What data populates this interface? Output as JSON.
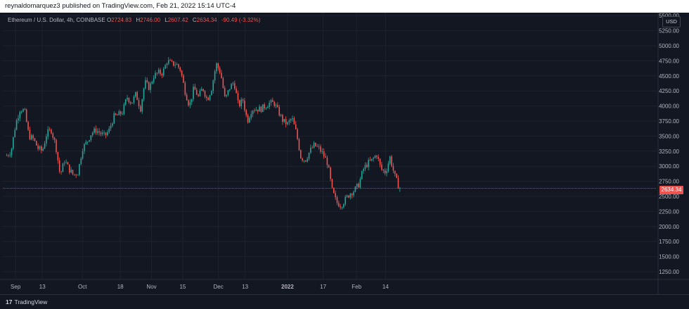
{
  "header": {
    "attribution": "reynaldomarquez3 published on TradingView.com, Feb 21, 2022 15:14 UTC-4"
  },
  "legend": {
    "symbol": "Ethereum / U.S. Dollar, 4h, COINBASE",
    "open_label": "O",
    "open": "2724.83",
    "high_label": "H",
    "high": "2746.00",
    "low_label": "L",
    "low": "2607.42",
    "close_label": "C",
    "close": "2634.34",
    "change": "-90.49 (-3.32%)"
  },
  "currency_button": "USD",
  "last_price_label": "2634.34",
  "footer": {
    "brand": "TradingView",
    "brand_mark": "17"
  },
  "colors": {
    "background": "#131722",
    "up": "#26a69a",
    "down": "#ef5350",
    "grid": "#1e222d",
    "axis_text": "#b2b5be"
  },
  "chart_data": {
    "type": "candlestick",
    "instrument": "Ethereum / U.S. Dollar",
    "interval": "4h",
    "exchange": "COINBASE",
    "ylim": [
      1000,
      5550
    ],
    "y_ticks": [
      "1250.00",
      "1500.00",
      "1750.00",
      "2000.00",
      "2250.00",
      "2500.00",
      "2750.00",
      "3000.00",
      "3250.00",
      "3500.00",
      "3750.00",
      "4000.00",
      "4250.00",
      "4500.00",
      "4750.00",
      "5000.00",
      "5250.00",
      "5500.00"
    ],
    "x_ticks": [
      "Sep",
      "13",
      "Oct",
      "18",
      "Nov",
      "15",
      "Dec",
      "13",
      "2022",
      "17",
      "Feb",
      "14"
    ],
    "last_price": 2634.34,
    "grid": true,
    "price_path": [
      {
        "date": "2021-08-28",
        "price": 3180
      },
      {
        "date": "2021-08-30",
        "price": 3250
      },
      {
        "date": "2021-09-01",
        "price": 3700
      },
      {
        "date": "2021-09-03",
        "price": 3950
      },
      {
        "date": "2021-09-05",
        "price": 3920
      },
      {
        "date": "2021-09-07",
        "price": 3500
      },
      {
        "date": "2021-09-09",
        "price": 3450
      },
      {
        "date": "2021-09-11",
        "price": 3300
      },
      {
        "date": "2021-09-13",
        "price": 3250
      },
      {
        "date": "2021-09-15",
        "price": 3550
      },
      {
        "date": "2021-09-17",
        "price": 3600
      },
      {
        "date": "2021-09-19",
        "price": 3350
      },
      {
        "date": "2021-09-21",
        "price": 2850
      },
      {
        "date": "2021-09-23",
        "price": 3100
      },
      {
        "date": "2021-09-25",
        "price": 2950
      },
      {
        "date": "2021-09-27",
        "price": 2850
      },
      {
        "date": "2021-09-29",
        "price": 2900
      },
      {
        "date": "2021-10-01",
        "price": 3300
      },
      {
        "date": "2021-10-03",
        "price": 3400
      },
      {
        "date": "2021-10-05",
        "price": 3550
      },
      {
        "date": "2021-10-07",
        "price": 3600
      },
      {
        "date": "2021-10-09",
        "price": 3550
      },
      {
        "date": "2021-10-11",
        "price": 3500
      },
      {
        "date": "2021-10-13",
        "price": 3600
      },
      {
        "date": "2021-10-15",
        "price": 3820
      },
      {
        "date": "2021-10-17",
        "price": 3850
      },
      {
        "date": "2021-10-19",
        "price": 3900
      },
      {
        "date": "2021-10-21",
        "price": 4150
      },
      {
        "date": "2021-10-23",
        "price": 4050
      },
      {
        "date": "2021-10-25",
        "price": 4200
      },
      {
        "date": "2021-10-27",
        "price": 3950
      },
      {
        "date": "2021-10-29",
        "price": 4400
      },
      {
        "date": "2021-10-31",
        "price": 4300
      },
      {
        "date": "2021-11-02",
        "price": 4500
      },
      {
        "date": "2021-11-04",
        "price": 4550
      },
      {
        "date": "2021-11-06",
        "price": 4550
      },
      {
        "date": "2021-11-08",
        "price": 4750
      },
      {
        "date": "2021-11-10",
        "price": 4700
      },
      {
        "date": "2021-11-12",
        "price": 4700
      },
      {
        "date": "2021-11-14",
        "price": 4600
      },
      {
        "date": "2021-11-16",
        "price": 4250
      },
      {
        "date": "2021-11-18",
        "price": 4000
      },
      {
        "date": "2021-11-20",
        "price": 4300
      },
      {
        "date": "2021-11-22",
        "price": 4150
      },
      {
        "date": "2021-11-24",
        "price": 4300
      },
      {
        "date": "2021-11-26",
        "price": 4100
      },
      {
        "date": "2021-11-28",
        "price": 4300
      },
      {
        "date": "2021-11-30",
        "price": 4700
      },
      {
        "date": "2021-12-02",
        "price": 4550
      },
      {
        "date": "2021-12-04",
        "price": 4100
      },
      {
        "date": "2021-12-06",
        "price": 4300
      },
      {
        "date": "2021-12-08",
        "price": 4400
      },
      {
        "date": "2021-12-10",
        "price": 4000
      },
      {
        "date": "2021-12-12",
        "price": 4100
      },
      {
        "date": "2021-12-14",
        "price": 3750
      },
      {
        "date": "2021-12-16",
        "price": 3950
      },
      {
        "date": "2021-12-18",
        "price": 3950
      },
      {
        "date": "2021-12-20",
        "price": 3950
      },
      {
        "date": "2021-12-22",
        "price": 4000
      },
      {
        "date": "2021-12-24",
        "price": 4050
      },
      {
        "date": "2021-12-26",
        "price": 4050
      },
      {
        "date": "2021-12-28",
        "price": 3900
      },
      {
        "date": "2021-12-30",
        "price": 3750
      },
      {
        "date": "2022-01-01",
        "price": 3700
      },
      {
        "date": "2022-01-03",
        "price": 3800
      },
      {
        "date": "2022-01-05",
        "price": 3550
      },
      {
        "date": "2022-01-07",
        "price": 3150
      },
      {
        "date": "2022-01-09",
        "price": 3100
      },
      {
        "date": "2022-01-11",
        "price": 3250
      },
      {
        "date": "2022-01-13",
        "price": 3350
      },
      {
        "date": "2022-01-15",
        "price": 3300
      },
      {
        "date": "2022-01-17",
        "price": 3200
      },
      {
        "date": "2022-01-19",
        "price": 3050
      },
      {
        "date": "2022-01-21",
        "price": 2600
      },
      {
        "date": "2022-01-23",
        "price": 2400
      },
      {
        "date": "2022-01-25",
        "price": 2350
      },
      {
        "date": "2022-01-27",
        "price": 2450
      },
      {
        "date": "2022-01-29",
        "price": 2550
      },
      {
        "date": "2022-01-31",
        "price": 2600
      },
      {
        "date": "2022-02-02",
        "price": 2700
      },
      {
        "date": "2022-02-04",
        "price": 2950
      },
      {
        "date": "2022-02-06",
        "price": 3050
      },
      {
        "date": "2022-02-08",
        "price": 3100
      },
      {
        "date": "2022-02-10",
        "price": 3200
      },
      {
        "date": "2022-02-12",
        "price": 2950
      },
      {
        "date": "2022-02-14",
        "price": 2900
      },
      {
        "date": "2022-02-16",
        "price": 3150
      },
      {
        "date": "2022-02-18",
        "price": 2850
      },
      {
        "date": "2022-02-20",
        "price": 2650
      },
      {
        "date": "2022-02-21",
        "price": 2634
      }
    ]
  }
}
